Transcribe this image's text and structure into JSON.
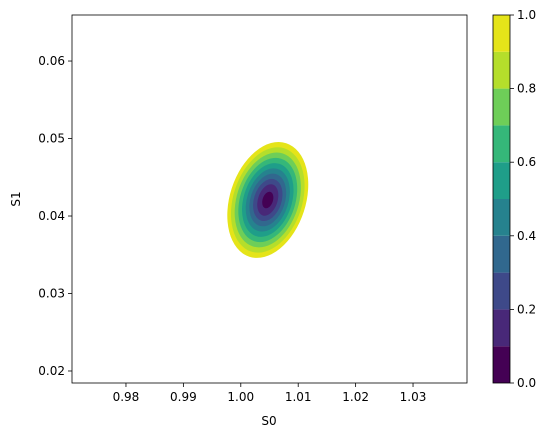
{
  "chart_data": {
    "type": "contourf",
    "xlabel": "S0",
    "ylabel": "S1",
    "xlim": [
      0.9706,
      1.0394
    ],
    "xticks": [
      0.98,
      0.99,
      {
        "value": 1.0,
        "label": "1.00"
      },
      1.01,
      1.02,
      1.03
    ],
    "ylim": [
      0.01845,
      0.06594
    ],
    "yticks": [
      0.02,
      0.03,
      0.04,
      0.05,
      0.06
    ],
    "center": [
      1.0047,
      0.04207
    ],
    "angle": 18,
    "levels": [
      0,
      0.1,
      0.2,
      0.3,
      0.4,
      0.5,
      0.6,
      0.7,
      0.8,
      0.9,
      1.0
    ],
    "colors": [
      "#440154",
      "#482878",
      "#3e4989",
      "#31688e",
      "#26828e",
      "#1f9e89",
      "#35b779",
      "#6ece58",
      "#b5de2b",
      "#e5e419"
    ],
    "contours": [
      {
        "rx": 0.0009,
        "ry": 0.0011
      },
      {
        "rx": 0.0017,
        "ry": 0.0021
      },
      {
        "rx": 0.0024,
        "ry": 0.0028
      },
      {
        "rx": 0.003,
        "ry": 0.0035
      },
      {
        "rx": 0.0036,
        "ry": 0.0042
      },
      {
        "rx": 0.0042,
        "ry": 0.0049
      },
      {
        "rx": 0.0048,
        "ry": 0.0056
      },
      {
        "rx": 0.0054,
        "ry": 0.0063
      },
      {
        "rx": 0.006,
        "ry": 0.007
      },
      {
        "rx": 0.0066,
        "ry": 0.0077
      }
    ],
    "colorbar": {
      "lim": [
        0,
        1.0
      ],
      "ticks": [
        {
          "value": 0,
          "label": "0.0"
        },
        {
          "value": 0.2,
          "label": "0.2"
        },
        {
          "value": 0.4,
          "label": "0.4"
        },
        {
          "value": 0.6,
          "label": "0.6"
        },
        {
          "value": 0.8,
          "label": "0.8"
        },
        {
          "value": 1.0,
          "label": "1.0"
        }
      ]
    }
  }
}
